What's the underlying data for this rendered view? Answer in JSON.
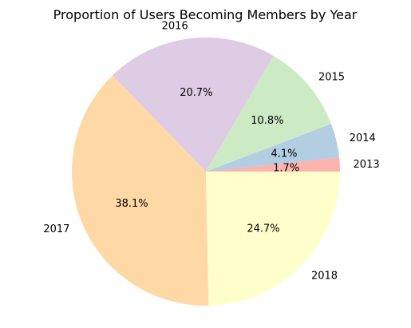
{
  "chart_data": {
    "type": "pie",
    "title": "Proportion of Users Becoming Members by Year",
    "categories": [
      "2013",
      "2014",
      "2015",
      "2016",
      "2017",
      "2018"
    ],
    "values": [
      1.7,
      4.1,
      10.8,
      20.7,
      38.1,
      24.7
    ],
    "value_labels": [
      "1.7%",
      "4.1%",
      "10.8%",
      "20.7%",
      "38.1%",
      "24.7%"
    ],
    "colors": [
      "#fbb4ae",
      "#b3cde3",
      "#ccebc5",
      "#decbe4",
      "#fed9a6",
      "#ffffcc"
    ],
    "start_angle_deg": 0,
    "direction": "counterclockwise",
    "legend": "none"
  }
}
